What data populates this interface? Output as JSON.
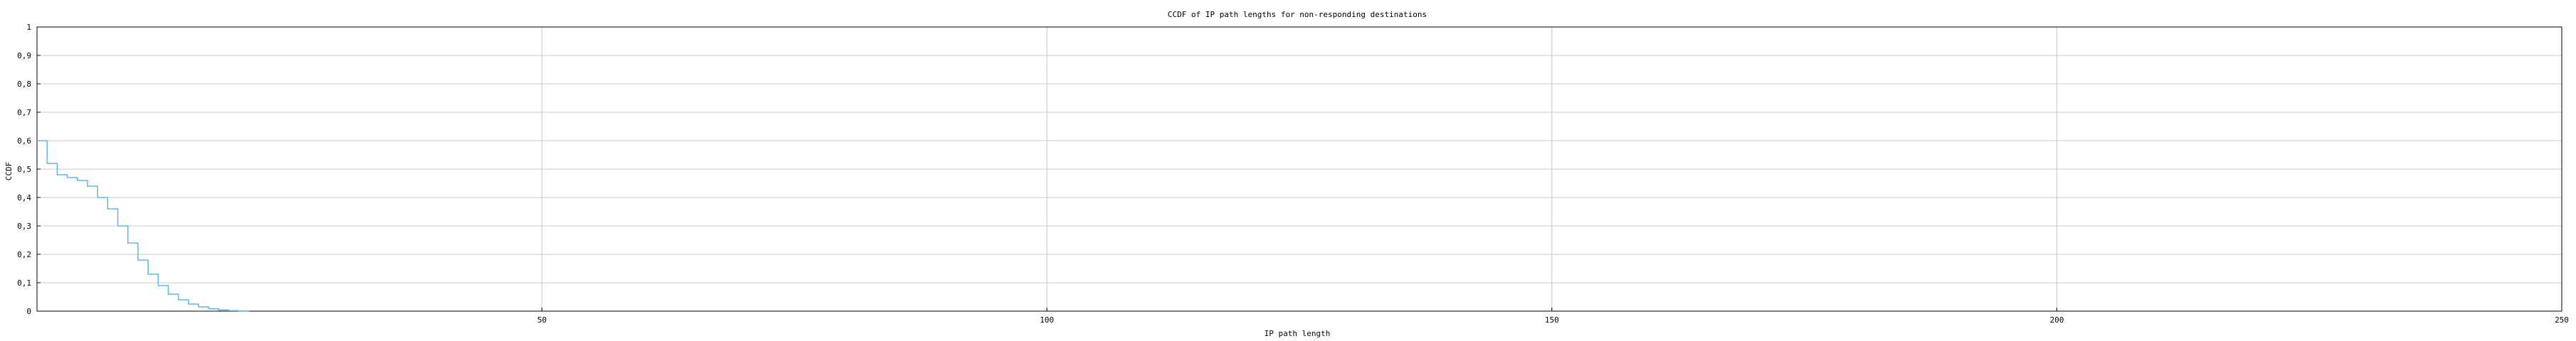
{
  "chart_data": {
    "type": "line",
    "step": true,
    "title": "CCDF of IP path lengths for non-responding destinations",
    "xlabel": "IP path length",
    "ylabel": "CCDF",
    "xlim": [
      0,
      250
    ],
    "ylim": [
      0,
      1
    ],
    "xticks": [
      50,
      100,
      150,
      200,
      250
    ],
    "yticks": [
      0,
      0.1,
      0.2,
      0.3,
      0.4,
      0.5,
      0.6,
      0.7,
      0.8,
      0.9,
      1
    ],
    "tick_labels": {
      "x": [
        "50",
        "100",
        "150",
        "200",
        "250"
      ],
      "y": [
        "0",
        "0,1",
        "0,2",
        "0,3",
        "0,4",
        "0,5",
        "0,6",
        "0,7",
        "0,8",
        "0,9",
        "1"
      ]
    },
    "grid": true,
    "legend": false,
    "series_color": "#5bb8e6",
    "grid_color": "#c8c8c8",
    "series": [
      {
        "x": [
          0,
          1,
          2,
          3,
          4,
          5,
          6,
          7,
          8,
          9,
          10,
          11,
          12,
          13,
          14,
          15,
          16,
          17,
          18,
          19,
          20,
          21
        ],
        "y": [
          0.6,
          0.52,
          0.48,
          0.47,
          0.46,
          0.44,
          0.4,
          0.36,
          0.3,
          0.24,
          0.18,
          0.13,
          0.09,
          0.06,
          0.04,
          0.025,
          0.015,
          0.008,
          0.004,
          0.002,
          0.001,
          0.0
        ]
      }
    ]
  }
}
